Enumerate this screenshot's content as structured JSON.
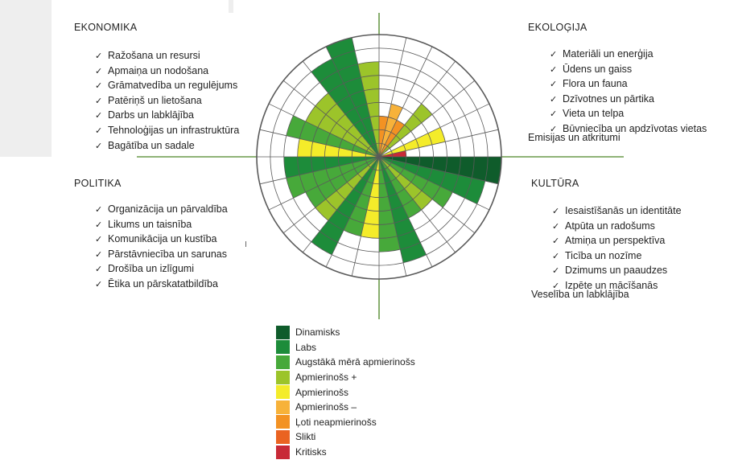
{
  "colors": {
    "page": "#ffffff",
    "backdrop": "#eeeeee",
    "axis": "#6a9a4a",
    "ring": "#5a5a5a"
  },
  "rating_scale": [
    {
      "label": "Dinamisks",
      "color": "#0f5c2b"
    },
    {
      "label": "Labs",
      "color": "#1d8c3a"
    },
    {
      "label": "Augstākā mērā apmierinošs",
      "color": "#47a93a"
    },
    {
      "label": "Apmierinošs +",
      "color": "#9cc42a"
    },
    {
      "label": "Apmierinošs",
      "color": "#f4ec2a"
    },
    {
      "label": "Apmierinošs –",
      "color": "#f7b23a"
    },
    {
      "label": "Ļoti neapmierinošs",
      "color": "#f39223"
    },
    {
      "label": "Slikti",
      "color": "#ea6321"
    },
    {
      "label": "Kritisks",
      "color": "#c82a37"
    }
  ],
  "quadrants": {
    "economics": {
      "title": "EKONOMIKA",
      "items": [
        "Ražošana un resursi",
        "Apmaiņa un nodošana",
        "Grāmatvedība un regulējums",
        "Patēriņš un lietošana",
        "Darbs un labklājība",
        "Tehnoloģijas un infrastruktūra",
        "Bagātība un sadale"
      ]
    },
    "ecology": {
      "title": "EKOLOĢIJA",
      "items": [
        "Materiāli un enerģija",
        "Ūdens un gaiss",
        "Flora un fauna",
        "Dzīvotnes un pārtika",
        "Vieta un telpa",
        "Būvniecība un apdzīvotas vietas"
      ],
      "last": "Emisijas un atkritumi"
    },
    "politics": {
      "title": "POLITIKA",
      "items": [
        "Organizācija un pārvaldība",
        "Likums un taisnība",
        "Komunikācija un kustība",
        "Pārstāvniecība un sarunas",
        "Drošība un izlīgumi",
        "Ētika un pārskatatbildība"
      ]
    },
    "culture": {
      "title": "KULTŪRA",
      "items": [
        "Iesaistīšanās un identitāte",
        "Atpūta un radošums",
        "Atmiņa un perspektīva",
        "Ticība un nozīme",
        "Dzimums un paaudzes",
        "Izpēte un mācīšanās"
      ],
      "last": "Veselība un labklājība"
    }
  },
  "wheel": {
    "ring_count": 9,
    "segments_per_quadrant": 7,
    "segments": [
      {
        "quadrant": "EKOLOĢIJA",
        "level": 3,
        "rating": "Ļoti neapmierinošs"
      },
      {
        "quadrant": "EKOLOĢIJA",
        "level": 4,
        "rating": "Apmierinošs –"
      },
      {
        "quadrant": "EKOLOĢIJA",
        "level": 3,
        "rating": "Ļoti neapmierinošs"
      },
      {
        "quadrant": "EKOLOĢIJA",
        "level": 5,
        "rating": "Apmierinošs +"
      },
      {
        "quadrant": "EKOLOĢIJA",
        "level": 0,
        "rating": "Apmierinošs"
      },
      {
        "quadrant": "EKOLOĢIJA",
        "level": 5,
        "rating": "Apmierinošs"
      },
      {
        "quadrant": "EKOLOĢIJA",
        "level": 2,
        "rating": "Kritisks"
      },
      {
        "quadrant": "KULTŪRA",
        "level": 9,
        "rating": "Dinamisks"
      },
      {
        "quadrant": "KULTŪRA",
        "level": 8,
        "rating": "Labs"
      },
      {
        "quadrant": "KULTŪRA",
        "level": 6,
        "rating": "Augstākā mērā apmierinošs"
      },
      {
        "quadrant": "KULTŪRA",
        "level": 5,
        "rating": "Apmierinošs +"
      },
      {
        "quadrant": "KULTŪRA",
        "level": 5,
        "rating": "Augstākā mērā apmierinošs"
      },
      {
        "quadrant": "KULTŪRA",
        "level": 8,
        "rating": "Labs"
      },
      {
        "quadrant": "KULTŪRA",
        "level": 7,
        "rating": "Augstākā mērā apmierinošs"
      },
      {
        "quadrant": "POLITIKA",
        "level": 6,
        "rating": "Apmierinošs"
      },
      {
        "quadrant": "POLITIKA",
        "level": 6,
        "rating": "Augstākā mērā apmierinošs"
      },
      {
        "quadrant": "POLITIKA",
        "level": 8,
        "rating": "Labs"
      },
      {
        "quadrant": "POLITIKA",
        "level": 6,
        "rating": "Apmierinošs +"
      },
      {
        "quadrant": "POLITIKA",
        "level": 6,
        "rating": "Augstākā mērā apmierinošs"
      },
      {
        "quadrant": "POLITIKA",
        "level": 7,
        "rating": "Augstākā mērā apmierinošs"
      },
      {
        "quadrant": "POLITIKA",
        "level": 7,
        "rating": "Labs"
      },
      {
        "quadrant": "EKONOMIKA",
        "level": 6,
        "rating": "Apmierinošs"
      },
      {
        "quadrant": "EKONOMIKA",
        "level": 7,
        "rating": "Augstākā mērā apmierinošs"
      },
      {
        "quadrant": "EKONOMIKA",
        "level": 6,
        "rating": "Apmierinošs +"
      },
      {
        "quadrant": "EKONOMIKA",
        "level": 6,
        "rating": "Apmierinošs +"
      },
      {
        "quadrant": "EKONOMIKA",
        "level": 8,
        "rating": "Labs"
      },
      {
        "quadrant": "EKONOMIKA",
        "level": 9,
        "rating": "Labs"
      },
      {
        "quadrant": "EKONOMIKA",
        "level": 7,
        "rating": "Apmierinošs +"
      }
    ]
  }
}
